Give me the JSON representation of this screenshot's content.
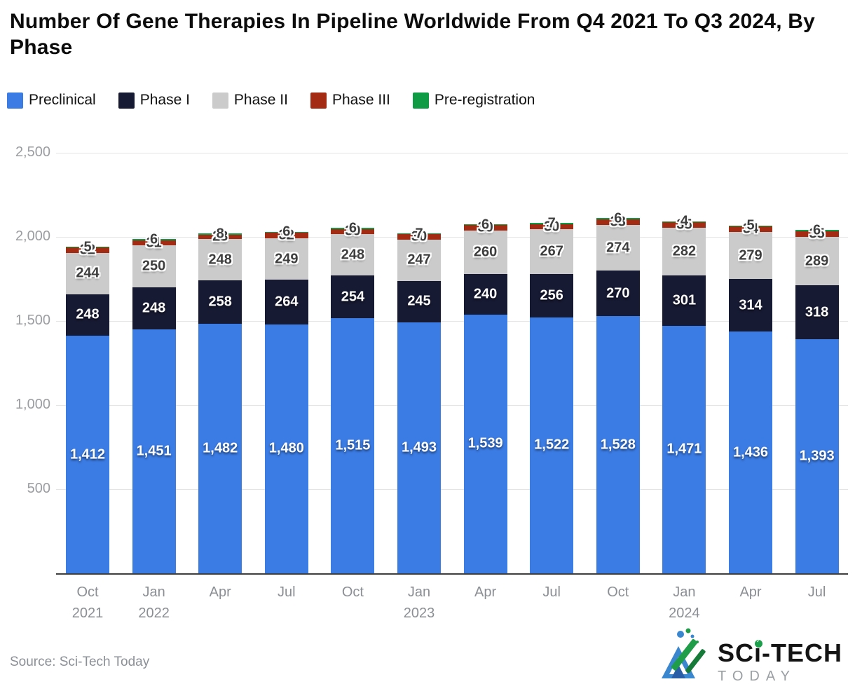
{
  "header": {
    "title": "Number Of Gene Therapies In Pipeline Worldwide From Q4 2021 To Q3 2024, By Phase"
  },
  "chart_data": {
    "type": "bar",
    "stacked": true,
    "title": "Number Of Gene Therapies In Pipeline Worldwide From Q4 2021 To Q3 2024, By Phase",
    "categories": [
      "Oct",
      "Jan",
      "Apr",
      "Jul",
      "Oct",
      "Jan",
      "Apr",
      "Jul",
      "Oct",
      "Jan",
      "Apr",
      "Jul"
    ],
    "category_years": [
      "2021",
      "2022",
      "",
      "",
      "",
      "2023",
      "",
      "",
      "",
      "2024",
      "",
      ""
    ],
    "series": [
      {
        "name": "Preclinical",
        "color": "#3b7ce4",
        "values": [
          1412,
          1451,
          1482,
          1480,
          1515,
          1493,
          1539,
          1522,
          1528,
          1471,
          1436,
          1393
        ]
      },
      {
        "name": "Phase I",
        "color": "#171a33",
        "values": [
          248,
          248,
          258,
          264,
          254,
          245,
          240,
          256,
          270,
          301,
          314,
          318
        ]
      },
      {
        "name": "Phase II",
        "color": "#cbcbcb",
        "values": [
          244,
          250,
          248,
          249,
          248,
          247,
          260,
          267,
          274,
          282,
          279,
          289
        ]
      },
      {
        "name": "Phase III",
        "color": "#a32b13",
        "values": [
          32,
          31,
          23,
          32,
          30,
          30,
          30,
          30,
          33,
          35,
          34,
          35
        ]
      },
      {
        "name": "Pre-registration",
        "color": "#0f9b45",
        "values": [
          5,
          6,
          8,
          6,
          6,
          7,
          6,
          7,
          6,
          4,
          5,
          6
        ]
      }
    ],
    "ylim": [
      0,
      2500
    ],
    "yticks": [
      {
        "value": 500,
        "label": "500"
      },
      {
        "value": 1000,
        "label": "1,000"
      },
      {
        "value": 1500,
        "label": "1,500"
      },
      {
        "value": 2000,
        "label": "2,000"
      },
      {
        "value": 2500,
        "label": "2,500"
      }
    ],
    "grid": true,
    "legend_position": "top"
  },
  "footer": {
    "source": "Source: Sci-Tech Today"
  },
  "logo": {
    "part1": "SC",
    "part_i": "i",
    "part2": "-TECH",
    "sub": "TODAY"
  }
}
